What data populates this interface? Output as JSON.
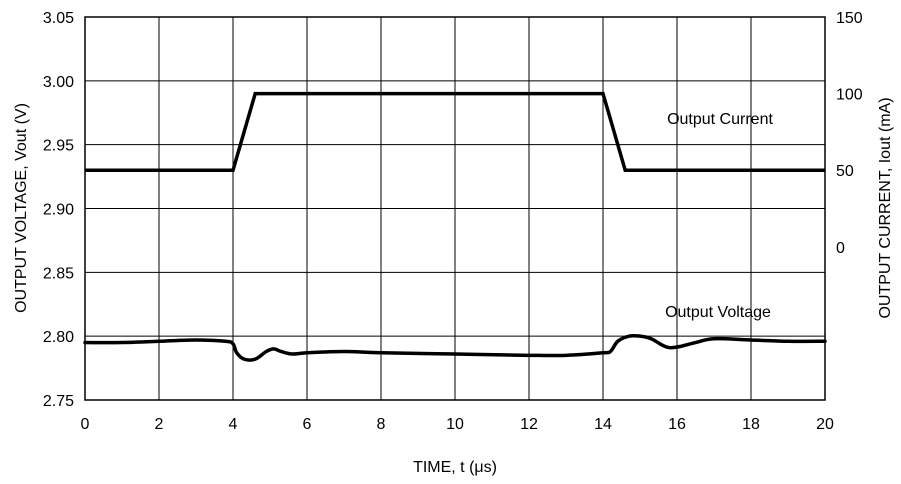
{
  "chart_data": {
    "type": "line",
    "xlabel": "TIME, t (μs)",
    "ylabel_left": "OUTPUT VOLTAGE, Vout (V)",
    "ylabel_right": "OUTPUT CURRENT, Iout (mA)",
    "xlim": [
      0,
      20
    ],
    "ylim_left": [
      2.75,
      3.05
    ],
    "ylim_right": [
      -100,
      150
    ],
    "grid": true,
    "x_ticks": [
      "0",
      "2",
      "4",
      "6",
      "8",
      "10",
      "12",
      "14",
      "16",
      "18",
      "20"
    ],
    "y_left_ticks": [
      "2.75",
      "2.80",
      "2.85",
      "2.90",
      "2.95",
      "3.00",
      "3.05"
    ],
    "y_right_ticks": [
      "0",
      "50",
      "100",
      "150"
    ],
    "series": [
      {
        "name": "Output Current",
        "axis": "right",
        "x": [
          0,
          4.0,
          4.6,
          14.0,
          14.6,
          20
        ],
        "y": [
          50,
          50,
          100,
          100,
          50,
          50
        ]
      },
      {
        "name": "Output Voltage",
        "axis": "left",
        "x": [
          0,
          1,
          2,
          3,
          3.8,
          4.0,
          4.1,
          4.3,
          4.6,
          4.9,
          5.1,
          5.3,
          5.6,
          6,
          7,
          8,
          10,
          12,
          13,
          14,
          14.2,
          14.4,
          14.7,
          15.0,
          15.3,
          15.6,
          15.8,
          16.1,
          16.5,
          17.0,
          18,
          19,
          20
        ],
        "y": [
          2.795,
          2.795,
          2.796,
          2.797,
          2.796,
          2.794,
          2.787,
          2.782,
          2.782,
          2.788,
          2.79,
          2.788,
          2.786,
          2.787,
          2.788,
          2.787,
          2.786,
          2.785,
          2.785,
          2.787,
          2.788,
          2.796,
          2.8,
          2.8,
          2.798,
          2.793,
          2.791,
          2.792,
          2.795,
          2.798,
          2.797,
          2.796,
          2.796
        ]
      }
    ],
    "annotations": [
      "Output Current",
      "Output Voltage"
    ]
  }
}
